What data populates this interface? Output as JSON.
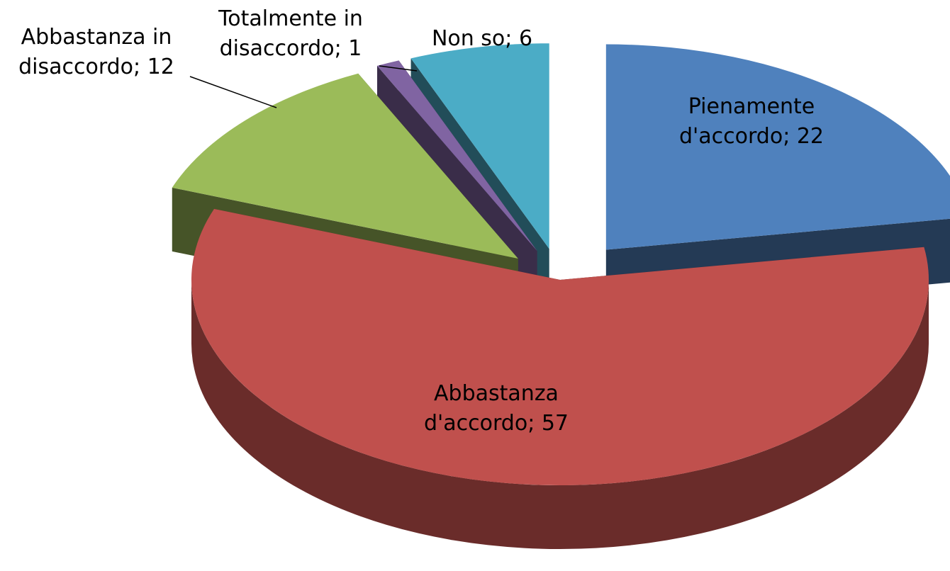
{
  "chart_data": {
    "type": "pie3d",
    "categories": [
      "Pienamente d'accordo",
      "Abbastanza d'accordo",
      "Abbastanza in disaccordo",
      "Totalmente in disaccordo",
      "Non so"
    ],
    "values": [
      22,
      57,
      12,
      1,
      6
    ],
    "colors": [
      "#4f81bd",
      "#c0504d",
      "#9bbb59",
      "#8064a2",
      "#4bacc6"
    ],
    "data_label_separator": "; "
  }
}
